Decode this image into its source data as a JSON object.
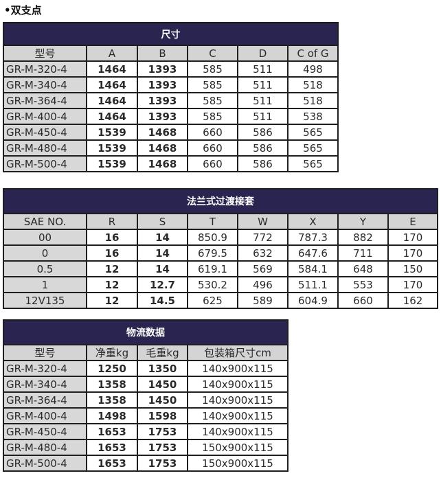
{
  "heading": "•双支点",
  "tables": [
    {
      "id": "t1",
      "title": "尺寸",
      "headers": [
        "型号",
        "A",
        "B",
        "C",
        "D",
        "C of G"
      ],
      "col_widths": [
        121,
        74,
        73,
        73,
        73,
        73
      ],
      "bold_cols": [
        1,
        2
      ],
      "first_col_align": "left",
      "rows": [
        [
          "GR-M-320-4",
          "1464",
          "1393",
          "585",
          "511",
          "498"
        ],
        [
          "GR-M-340-4",
          "1464",
          "1393",
          "585",
          "511",
          "518"
        ],
        [
          "GR-M-364-4",
          "1464",
          "1393",
          "585",
          "511",
          "518"
        ],
        [
          "GR-M-400-4",
          "1464",
          "1393",
          "585",
          "511",
          "538"
        ],
        [
          "GR-M-450-4",
          "1539",
          "1468",
          "660",
          "586",
          "565"
        ],
        [
          "GR-M-480-4",
          "1539",
          "1468",
          "660",
          "586",
          "565"
        ],
        [
          "GR-M-500-4",
          "1539",
          "1468",
          "660",
          "586",
          "565"
        ]
      ]
    },
    {
      "id": "t2",
      "title": "法兰式过渡接套",
      "headers": [
        "SAE NO.",
        "R",
        "S",
        "T",
        "W",
        "X",
        "Y",
        "E"
      ],
      "col_widths": [
        121,
        74,
        73,
        73,
        73,
        73,
        73,
        72
      ],
      "bold_cols": [
        1,
        2
      ],
      "first_col_align": "center",
      "rows": [
        [
          "00",
          "16",
          "14",
          "850.9",
          "772",
          "787.3",
          "882",
          "170"
        ],
        [
          "0",
          "16",
          "14",
          "679.5",
          "632",
          "647.6",
          "711",
          "170"
        ],
        [
          "0.5",
          "12",
          "14",
          "619.1",
          "569",
          "584.1",
          "648",
          "150"
        ],
        [
          "1",
          "12",
          "12.7",
          "530.2",
          "496",
          "511.1",
          "553",
          "170"
        ],
        [
          "12V135",
          "12",
          "14.5",
          "625",
          "589",
          "604.9",
          "660",
          "162"
        ]
      ]
    },
    {
      "id": "t3",
      "title": "物流数据",
      "headers": [
        "型号",
        "净重kg",
        "毛重kg",
        "包装箱尺寸cm"
      ],
      "col_widths": [
        121,
        74,
        73,
        146
      ],
      "bold_cols": [
        1,
        2
      ],
      "first_col_align": "left",
      "rows": [
        [
          "GR-M-320-4",
          "1250",
          "1350",
          "140x900x115"
        ],
        [
          "GR-M-340-4",
          "1358",
          "1450",
          "140x900x115"
        ],
        [
          "GR-M-364-4",
          "1358",
          "1450",
          "140x900x115"
        ],
        [
          "GR-M-400-4",
          "1498",
          "1598",
          "140x900x115"
        ],
        [
          "GR-M-450-4",
          "1653",
          "1753",
          "140x900x115"
        ],
        [
          "GR-M-480-4",
          "1653",
          "1753",
          "150x900x115"
        ],
        [
          "GR-M-500-4",
          "1653",
          "1753",
          "150x900x115"
        ]
      ]
    }
  ],
  "colors": {
    "title_bar": "#2a2550",
    "header_bg": "#d4d4d4",
    "first_col_bg": "#d8d8d8",
    "border": "#1e1e1e"
  }
}
